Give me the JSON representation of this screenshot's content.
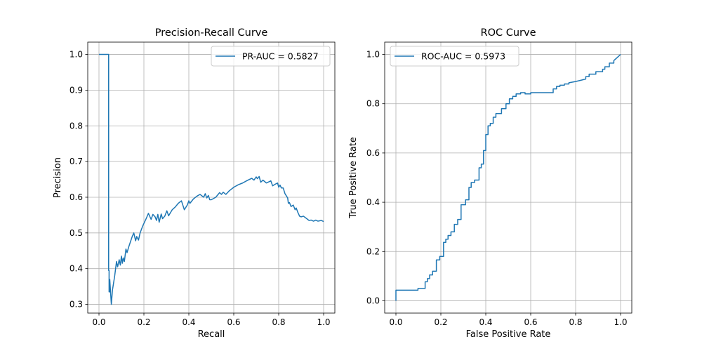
{
  "chart_data": [
    {
      "type": "line",
      "title": "Precision-Recall Curve",
      "xlabel": "Recall",
      "ylabel": "Precision",
      "xlim": [
        -0.05,
        1.05
      ],
      "ylim": [
        0.2755,
        1.0345
      ],
      "xticks": [
        0.0,
        0.2,
        0.4,
        0.6,
        0.8,
        1.0
      ],
      "xtick_labels": [
        "0.0",
        "0.2",
        "0.4",
        "0.6",
        "0.8",
        "1.0"
      ],
      "yticks": [
        0.3,
        0.4,
        0.5,
        0.6,
        0.7,
        0.8,
        0.9,
        1.0
      ],
      "ytick_labels": [
        "0.3",
        "0.4",
        "0.5",
        "0.6",
        "0.7",
        "0.8",
        "0.9",
        "1.0"
      ],
      "grid": true,
      "legend_position": "top-right",
      "series": [
        {
          "name": "PR-AUC = 0.5827",
          "color": "#1f77b4",
          "x": [
            0.0,
            0.041,
            0.043,
            0.043,
            0.045,
            0.045,
            0.048,
            0.048,
            0.055,
            0.06,
            0.07,
            0.078,
            0.083,
            0.09,
            0.095,
            0.1,
            0.104,
            0.108,
            0.113,
            0.12,
            0.125,
            0.133,
            0.14,
            0.148,
            0.155,
            0.163,
            0.168,
            0.176,
            0.183,
            0.195,
            0.21,
            0.22,
            0.232,
            0.24,
            0.25,
            0.256,
            0.262,
            0.268,
            0.277,
            0.283,
            0.293,
            0.302,
            0.31,
            0.326,
            0.34,
            0.353,
            0.367,
            0.38,
            0.393,
            0.4,
            0.405,
            0.42,
            0.436,
            0.45,
            0.466,
            0.473,
            0.48,
            0.487,
            0.493,
            0.5,
            0.52,
            0.537,
            0.545,
            0.553,
            0.565,
            0.58,
            0.6,
            0.62,
            0.64,
            0.66,
            0.68,
            0.69,
            0.7,
            0.705,
            0.713,
            0.72,
            0.73,
            0.745,
            0.756,
            0.765,
            0.773,
            0.783,
            0.795,
            0.8,
            0.806,
            0.812,
            0.82,
            0.828,
            0.835,
            0.84,
            0.843,
            0.848,
            0.855,
            0.865,
            0.873,
            0.878,
            0.885,
            0.893,
            0.9,
            0.91,
            0.925,
            0.935,
            0.945,
            0.955,
            0.965,
            0.975,
            0.99,
            1.0
          ],
          "y": [
            1.0,
            1.0,
            1.0,
            0.395,
            0.395,
            0.335,
            0.335,
            0.37,
            0.3,
            0.34,
            0.38,
            0.42,
            0.405,
            0.425,
            0.41,
            0.435,
            0.415,
            0.43,
            0.42,
            0.455,
            0.445,
            0.462,
            0.475,
            0.49,
            0.5,
            0.478,
            0.49,
            0.48,
            0.5,
            0.52,
            0.54,
            0.555,
            0.538,
            0.552,
            0.545,
            0.535,
            0.552,
            0.53,
            0.553,
            0.54,
            0.547,
            0.562,
            0.548,
            0.565,
            0.573,
            0.583,
            0.59,
            0.565,
            0.578,
            0.59,
            0.583,
            0.595,
            0.603,
            0.608,
            0.6,
            0.61,
            0.598,
            0.605,
            0.593,
            0.593,
            0.6,
            0.613,
            0.608,
            0.614,
            0.608,
            0.618,
            0.628,
            0.635,
            0.64,
            0.647,
            0.653,
            0.648,
            0.657,
            0.652,
            0.658,
            0.642,
            0.648,
            0.64,
            0.643,
            0.646,
            0.632,
            0.636,
            0.64,
            0.628,
            0.634,
            0.626,
            0.626,
            0.61,
            0.603,
            0.598,
            0.583,
            0.585,
            0.574,
            0.578,
            0.565,
            0.57,
            0.558,
            0.547,
            0.545,
            0.547,
            0.54,
            0.535,
            0.536,
            0.533,
            0.536,
            0.533,
            0.535,
            0.532
          ]
        }
      ]
    },
    {
      "type": "line",
      "title": "ROC Curve",
      "xlabel": "False Positive Rate",
      "ylabel": "True Positive Rate",
      "xlim": [
        -0.05,
        1.05
      ],
      "ylim": [
        -0.05,
        1.05
      ],
      "xticks": [
        0.0,
        0.2,
        0.4,
        0.6,
        0.8,
        1.0
      ],
      "xtick_labels": [
        "0.0",
        "0.2",
        "0.4",
        "0.6",
        "0.8",
        "1.0"
      ],
      "yticks": [
        0.0,
        0.2,
        0.4,
        0.6,
        0.8,
        1.0
      ],
      "ytick_labels": [
        "0.0",
        "0.2",
        "0.4",
        "0.6",
        "0.8",
        "1.0"
      ],
      "grid": true,
      "legend_position": "top-left",
      "series": [
        {
          "name": "ROC-AUC = 0.5973",
          "color": "#1f77b4",
          "x": [
            0.0,
            0.0,
            0.098,
            0.098,
            0.13,
            0.13,
            0.14,
            0.14,
            0.15,
            0.15,
            0.163,
            0.163,
            0.18,
            0.18,
            0.195,
            0.195,
            0.212,
            0.212,
            0.222,
            0.222,
            0.232,
            0.232,
            0.245,
            0.245,
            0.26,
            0.26,
            0.275,
            0.275,
            0.29,
            0.29,
            0.31,
            0.31,
            0.325,
            0.325,
            0.335,
            0.335,
            0.35,
            0.35,
            0.37,
            0.37,
            0.38,
            0.38,
            0.39,
            0.39,
            0.4,
            0.4,
            0.41,
            0.41,
            0.42,
            0.42,
            0.433,
            0.433,
            0.445,
            0.445,
            0.47,
            0.47,
            0.49,
            0.49,
            0.505,
            0.505,
            0.52,
            0.52,
            0.535,
            0.535,
            0.555,
            0.555,
            0.575,
            0.575,
            0.6,
            0.6,
            0.6,
            0.7,
            0.7,
            0.715,
            0.715,
            0.73,
            0.73,
            0.75,
            0.75,
            0.77,
            0.77,
            0.8,
            0.8,
            0.845,
            0.845,
            0.86,
            0.86,
            0.89,
            0.89,
            0.92,
            0.92,
            0.93,
            0.93,
            0.95,
            0.95,
            0.97,
            0.97,
            1.0
          ],
          "y": [
            0.0,
            0.043,
            0.043,
            0.05,
            0.05,
            0.077,
            0.077,
            0.09,
            0.09,
            0.105,
            0.105,
            0.12,
            0.12,
            0.166,
            0.166,
            0.18,
            0.18,
            0.237,
            0.237,
            0.25,
            0.25,
            0.265,
            0.265,
            0.28,
            0.28,
            0.31,
            0.31,
            0.33,
            0.33,
            0.39,
            0.39,
            0.41,
            0.41,
            0.46,
            0.46,
            0.48,
            0.48,
            0.49,
            0.49,
            0.54,
            0.54,
            0.555,
            0.555,
            0.61,
            0.61,
            0.675,
            0.675,
            0.71,
            0.71,
            0.72,
            0.72,
            0.745,
            0.745,
            0.76,
            0.76,
            0.78,
            0.78,
            0.8,
            0.8,
            0.82,
            0.82,
            0.83,
            0.83,
            0.84,
            0.84,
            0.845,
            0.845,
            0.84,
            0.84,
            0.845,
            0.845,
            0.845,
            0.86,
            0.86,
            0.87,
            0.87,
            0.875,
            0.875,
            0.88,
            0.88,
            0.885,
            0.89,
            0.89,
            0.9,
            0.91,
            0.91,
            0.92,
            0.92,
            0.93,
            0.93,
            0.94,
            0.94,
            0.95,
            0.95,
            0.965,
            0.965,
            0.975,
            1.0
          ]
        }
      ]
    }
  ]
}
